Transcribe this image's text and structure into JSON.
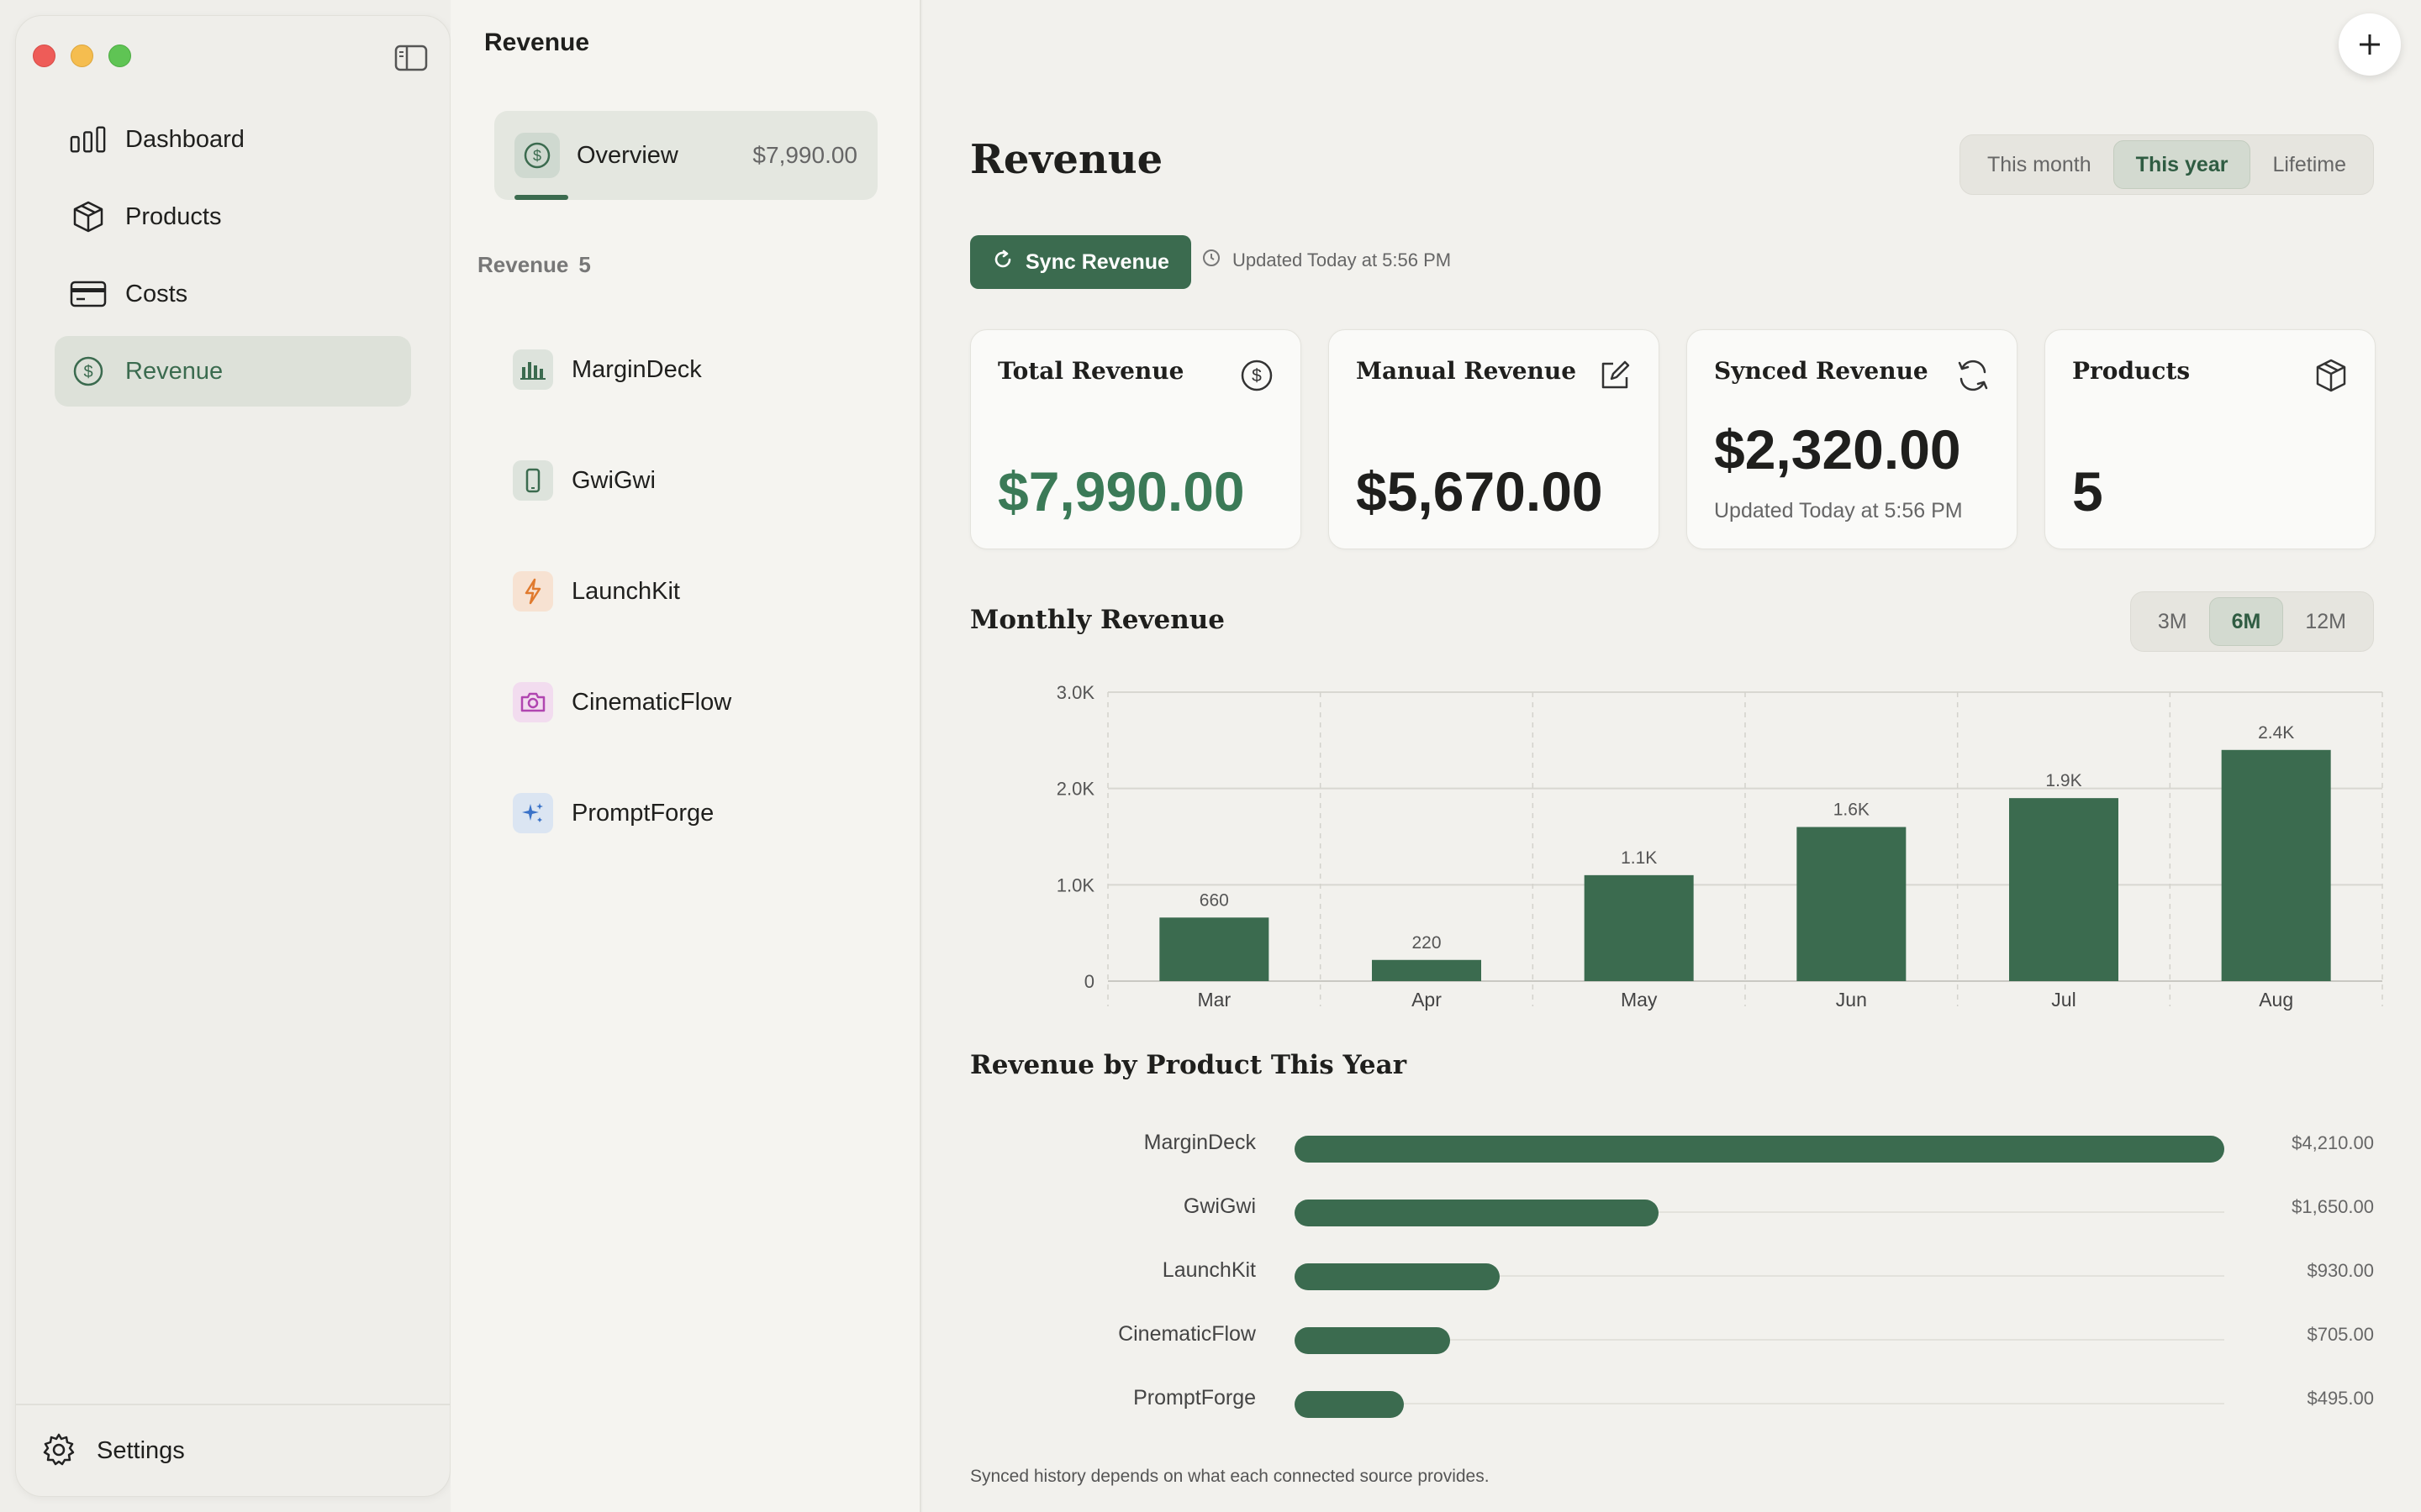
{
  "window": {
    "title": "Revenue"
  },
  "sidebar": {
    "items": [
      {
        "label": "Dashboard",
        "icon": "bar-chart-icon"
      },
      {
        "label": "Products",
        "icon": "box-icon"
      },
      {
        "label": "Costs",
        "icon": "card-icon"
      },
      {
        "label": "Revenue",
        "icon": "dollar-icon",
        "active": true
      }
    ],
    "settings_label": "Settings"
  },
  "middle": {
    "title": "Revenue",
    "overview": {
      "label": "Overview",
      "amount": "$7,990.00"
    },
    "section_label": "Revenue",
    "section_count": "5",
    "products": [
      {
        "name": "MarginDeck",
        "icon": "bars-icon",
        "bg": "#dde3dc",
        "fg": "#3b6b4f"
      },
      {
        "name": "GwiGwi",
        "icon": "phone-icon",
        "bg": "#dde3dc",
        "fg": "#3b6b4f"
      },
      {
        "name": "LaunchKit",
        "icon": "bolt-icon",
        "bg": "#f7e2d2",
        "fg": "#e07a2e"
      },
      {
        "name": "CinematicFlow",
        "icon": "camera-icon",
        "bg": "#f2dcef",
        "fg": "#b045b0"
      },
      {
        "name": "PromptForge",
        "icon": "sparkle-icon",
        "bg": "#dbe5f2",
        "fg": "#3a72c8"
      }
    ]
  },
  "main": {
    "title": "Revenue",
    "period": {
      "options": [
        "This month",
        "This year",
        "Lifetime"
      ],
      "selected": "This year"
    },
    "sync_label": "Sync Revenue",
    "updated_text": "Updated Today at 5:56 PM",
    "cards": [
      {
        "title": "Total Revenue",
        "value": "$7,990.00",
        "icon": "dollar-circle-icon"
      },
      {
        "title": "Manual Revenue",
        "value": "$5,670.00",
        "icon": "edit-icon"
      },
      {
        "title": "Synced Revenue",
        "value": "$2,320.00",
        "sub": "Updated Today at 5:56 PM",
        "icon": "sync-icon"
      },
      {
        "title": "Products",
        "value": "5",
        "icon": "box-icon"
      }
    ],
    "monthly_title": "Monthly Revenue",
    "range": {
      "options": [
        "3M",
        "6M",
        "12M"
      ],
      "selected": "6M"
    },
    "by_product_title": "Revenue by Product This Year",
    "footnote": "Synced history depends on what each connected source provides."
  },
  "colors": {
    "accent": "#3b6b4f",
    "accent_light": "#3b7a57"
  },
  "chart_data": [
    {
      "type": "bar",
      "title": "Monthly Revenue",
      "categories": [
        "Mar",
        "Apr",
        "May",
        "Jun",
        "Jul",
        "Aug"
      ],
      "values": [
        660,
        220,
        1100,
        1600,
        1900,
        2400
      ],
      "value_labels": [
        "660",
        "220",
        "1.1K",
        "1.6K",
        "1.9K",
        "2.4K"
      ],
      "yticks": [
        0,
        1000,
        2000,
        3000
      ],
      "ytick_labels": [
        "0",
        "1.0K",
        "2.0K",
        "3.0K"
      ],
      "ylim": [
        0,
        3000
      ],
      "grid": true
    },
    {
      "type": "bar",
      "orientation": "horizontal",
      "title": "Revenue by Product This Year",
      "categories": [
        "MarginDeck",
        "GwiGwi",
        "LaunchKit",
        "CinematicFlow",
        "PromptForge"
      ],
      "values": [
        4210,
        1650,
        930,
        705,
        495
      ],
      "value_labels": [
        "$4,210.00",
        "$1,650.00",
        "$930.00",
        "$705.00",
        "$495.00"
      ]
    }
  ]
}
